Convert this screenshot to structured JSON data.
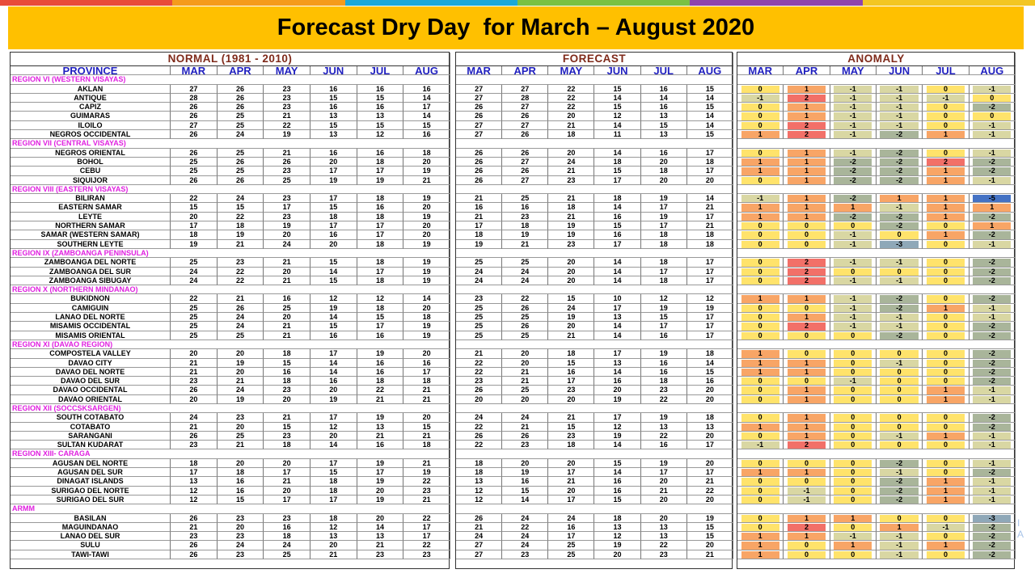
{
  "title": "Forecast Dry Day  for March – August 2020",
  "stripe_colors": [
    "#e84b3a",
    "#f59b1c",
    "#1ca8d6",
    "#7ac143",
    "#8e44ad",
    "#f3c623"
  ],
  "months": [
    "MAR",
    "APR",
    "MAY",
    "JUN",
    "JUL",
    "AUG"
  ],
  "normal_header": "NORMAL (1981 - 2010)",
  "forecast_header": "FORECAST",
  "anomaly_header": "ANOMALY",
  "province_header": "PROVINCE",
  "anomaly_colors": {
    "-5": "#4472c4",
    "-3": "#8fa8b8",
    "-2": "#a9b59a",
    "-1": "#d9d7a3",
    "0": "#ffe36b",
    "1": "#f8a566",
    "2": "#f27068"
  },
  "edge_text": [
    "I",
    "A"
  ],
  "rows": [
    {
      "region": "REGION VI (WESTERN VISAYAS)"
    },
    {
      "province": "AKLAN",
      "normal": [
        27,
        26,
        23,
        16,
        16,
        16
      ],
      "forecast": [
        27,
        27,
        22,
        15,
        16,
        15
      ],
      "anomaly": [
        0,
        1,
        -1,
        -1,
        0,
        -1
      ]
    },
    {
      "province": "ANTIQUE",
      "normal": [
        28,
        26,
        23,
        15,
        15,
        14
      ],
      "forecast": [
        27,
        28,
        22,
        14,
        14,
        14
      ],
      "anomaly": [
        -1,
        2,
        -1,
        -1,
        -1,
        0
      ]
    },
    {
      "province": "CAPIZ",
      "normal": [
        26,
        26,
        23,
        16,
        16,
        17
      ],
      "forecast": [
        26,
        27,
        22,
        15,
        16,
        15
      ],
      "anomaly": [
        0,
        1,
        -1,
        -1,
        0,
        -2
      ]
    },
    {
      "province": "GUIMARAS",
      "normal": [
        26,
        25,
        21,
        13,
        13,
        14
      ],
      "forecast": [
        26,
        26,
        20,
        12,
        13,
        14
      ],
      "anomaly": [
        0,
        1,
        -1,
        -1,
        0,
        0
      ]
    },
    {
      "province": "ILOILO",
      "normal": [
        27,
        25,
        22,
        15,
        15,
        15
      ],
      "forecast": [
        27,
        27,
        21,
        14,
        15,
        14
      ],
      "anomaly": [
        0,
        2,
        -1,
        -1,
        0,
        -1
      ]
    },
    {
      "province": "NEGROS OCCIDENTAL",
      "normal": [
        26,
        24,
        19,
        13,
        12,
        16
      ],
      "forecast": [
        27,
        26,
        18,
        11,
        13,
        15
      ],
      "anomaly": [
        1,
        2,
        -1,
        -2,
        1,
        -1
      ]
    },
    {
      "region": "REGION VII (CENTRAL VISAYAS)"
    },
    {
      "province": "NEGROS ORIENTAL",
      "normal": [
        26,
        25,
        21,
        16,
        16,
        18
      ],
      "forecast": [
        26,
        26,
        20,
        14,
        16,
        17
      ],
      "anomaly": [
        0,
        1,
        -1,
        -2,
        0,
        -1
      ]
    },
    {
      "province": "BOHOL",
      "normal": [
        25,
        26,
        26,
        20,
        18,
        20
      ],
      "forecast": [
        26,
        27,
        24,
        18,
        20,
        18
      ],
      "anomaly": [
        1,
        1,
        -2,
        -2,
        2,
        -2
      ]
    },
    {
      "province": "CEBU",
      "normal": [
        25,
        25,
        23,
        17,
        17,
        19
      ],
      "forecast": [
        26,
        26,
        21,
        15,
        18,
        17
      ],
      "anomaly": [
        1,
        1,
        -2,
        -2,
        1,
        -2
      ]
    },
    {
      "province": "SIQUIJOR",
      "normal": [
        26,
        26,
        25,
        19,
        19,
        21
      ],
      "forecast": [
        26,
        27,
        23,
        17,
        20,
        20
      ],
      "anomaly": [
        0,
        1,
        -2,
        -2,
        1,
        -1
      ]
    },
    {
      "region": "REGION VIII (EASTERN  VISAYAS)"
    },
    {
      "province": "BILIRAN",
      "normal": [
        22,
        24,
        23,
        17,
        18,
        19
      ],
      "forecast": [
        21,
        25,
        21,
        18,
        19,
        14
      ],
      "anomaly": [
        -1,
        1,
        -2,
        1,
        1,
        -5
      ]
    },
    {
      "province": "EASTERN SAMAR",
      "normal": [
        15,
        15,
        17,
        15,
        16,
        20
      ],
      "forecast": [
        16,
        16,
        18,
        14,
        17,
        21
      ],
      "anomaly": [
        1,
        1,
        1,
        -1,
        1,
        1
      ]
    },
    {
      "province": "LEYTE",
      "normal": [
        20,
        22,
        23,
        18,
        18,
        19
      ],
      "forecast": [
        21,
        23,
        21,
        16,
        19,
        17
      ],
      "anomaly": [
        1,
        1,
        -2,
        -2,
        1,
        -2
      ]
    },
    {
      "province": "NORTHERN SAMAR",
      "normal": [
        17,
        18,
        19,
        17,
        17,
        20
      ],
      "forecast": [
        17,
        18,
        19,
        15,
        17,
        21
      ],
      "anomaly": [
        0,
        0,
        0,
        -2,
        0,
        1
      ]
    },
    {
      "province": "SAMAR (WESTERN SAMAR)",
      "normal": [
        18,
        19,
        20,
        16,
        17,
        20
      ],
      "forecast": [
        18,
        19,
        19,
        16,
        18,
        18
      ],
      "anomaly": [
        0,
        0,
        -1,
        0,
        1,
        -2
      ]
    },
    {
      "province": "SOUTHERN LEYTE",
      "normal": [
        19,
        21,
        24,
        20,
        18,
        19
      ],
      "forecast": [
        19,
        21,
        23,
        17,
        18,
        18
      ],
      "anomaly": [
        0,
        0,
        -1,
        -3,
        0,
        -1
      ]
    },
    {
      "region": "REGION IX (ZAMBOANGA PENINSULA)"
    },
    {
      "province": "ZAMBOANGA DEL NORTE",
      "normal": [
        25,
        23,
        21,
        15,
        18,
        19
      ],
      "forecast": [
        25,
        25,
        20,
        14,
        18,
        17
      ],
      "anomaly": [
        0,
        2,
        -1,
        -1,
        0,
        -2
      ]
    },
    {
      "province": "ZAMBOANGA DEL SUR",
      "normal": [
        24,
        22,
        20,
        14,
        17,
        19
      ],
      "forecast": [
        24,
        24,
        20,
        14,
        17,
        17
      ],
      "anomaly": [
        0,
        2,
        0,
        0,
        0,
        -2
      ]
    },
    {
      "province": "ZAMBOANGA SIBUGAY",
      "normal": [
        24,
        22,
        21,
        15,
        18,
        19
      ],
      "forecast": [
        24,
        24,
        20,
        14,
        18,
        17
      ],
      "anomaly": [
        0,
        2,
        -1,
        -1,
        0,
        -2
      ]
    },
    {
      "region": "REGION X (NORTHERN MINDANAO)"
    },
    {
      "province": "BUKIDNON",
      "normal": [
        22,
        21,
        16,
        12,
        12,
        14
      ],
      "forecast": [
        23,
        22,
        15,
        10,
        12,
        12
      ],
      "anomaly": [
        1,
        1,
        -1,
        -2,
        0,
        -2
      ]
    },
    {
      "province": "CAMIGUIN",
      "normal": [
        25,
        26,
        25,
        19,
        18,
        20
      ],
      "forecast": [
        25,
        26,
        24,
        17,
        19,
        19
      ],
      "anomaly": [
        0,
        0,
        -1,
        -2,
        1,
        -1
      ]
    },
    {
      "province": "LANAO DEL NORTE",
      "normal": [
        25,
        24,
        20,
        14,
        15,
        18
      ],
      "forecast": [
        25,
        25,
        19,
        13,
        15,
        17
      ],
      "anomaly": [
        0,
        1,
        -1,
        -1,
        0,
        -1
      ]
    },
    {
      "province": "MISAMIS OCCIDENTAL",
      "normal": [
        25,
        24,
        21,
        15,
        17,
        19
      ],
      "forecast": [
        25,
        26,
        20,
        14,
        17,
        17
      ],
      "anomaly": [
        0,
        2,
        -1,
        -1,
        0,
        -2
      ]
    },
    {
      "province": "MISAMIS ORIENTAL",
      "normal": [
        25,
        25,
        21,
        16,
        16,
        19
      ],
      "forecast": [
        25,
        25,
        21,
        14,
        16,
        17
      ],
      "anomaly": [
        0,
        0,
        0,
        -2,
        0,
        -2
      ]
    },
    {
      "region": "REGION XI (DAVAO REGION)"
    },
    {
      "province": "COMPOSTELA VALLEY",
      "normal": [
        20,
        20,
        18,
        17,
        19,
        20
      ],
      "forecast": [
        21,
        20,
        18,
        17,
        19,
        18
      ],
      "anomaly": [
        1,
        0,
        0,
        0,
        0,
        -2
      ]
    },
    {
      "province": "DAVAO CITY",
      "normal": [
        21,
        19,
        15,
        14,
        16,
        16
      ],
      "forecast": [
        22,
        20,
        15,
        13,
        16,
        14
      ],
      "anomaly": [
        1,
        1,
        0,
        -1,
        0,
        -2
      ]
    },
    {
      "province": "DAVAO DEL NORTE",
      "normal": [
        21,
        20,
        16,
        14,
        16,
        17
      ],
      "forecast": [
        22,
        21,
        16,
        14,
        16,
        15
      ],
      "anomaly": [
        1,
        1,
        0,
        0,
        0,
        -2
      ]
    },
    {
      "province": "DAVAO DEL SUR",
      "normal": [
        23,
        21,
        18,
        16,
        18,
        18
      ],
      "forecast": [
        23,
        21,
        17,
        16,
        18,
        16
      ],
      "anomaly": [
        0,
        0,
        -1,
        0,
        0,
        -2
      ]
    },
    {
      "province": "DAVAO OCCIDENTAL",
      "normal": [
        26,
        24,
        23,
        20,
        22,
        21
      ],
      "forecast": [
        26,
        25,
        23,
        20,
        23,
        20
      ],
      "anomaly": [
        0,
        1,
        0,
        0,
        1,
        -1
      ]
    },
    {
      "province": "DAVAO ORIENTAL",
      "normal": [
        20,
        19,
        20,
        19,
        21,
        21
      ],
      "forecast": [
        20,
        20,
        20,
        19,
        22,
        20
      ],
      "anomaly": [
        0,
        1,
        0,
        0,
        1,
        -1
      ]
    },
    {
      "region": "REGION XII (SOCCSKSARGEN)"
    },
    {
      "province": "SOUTH COTABATO",
      "normal": [
        24,
        23,
        21,
        17,
        19,
        20
      ],
      "forecast": [
        24,
        24,
        21,
        17,
        19,
        18
      ],
      "anomaly": [
        0,
        1,
        0,
        0,
        0,
        -2
      ]
    },
    {
      "province": "COTABATO",
      "normal": [
        21,
        20,
        15,
        12,
        13,
        15
      ],
      "forecast": [
        22,
        21,
        15,
        12,
        13,
        13
      ],
      "anomaly": [
        1,
        1,
        0,
        0,
        0,
        -2
      ]
    },
    {
      "province": "SARANGANI",
      "normal": [
        26,
        25,
        23,
        20,
        21,
        21
      ],
      "forecast": [
        26,
        26,
        23,
        19,
        22,
        20
      ],
      "anomaly": [
        0,
        1,
        0,
        -1,
        1,
        -1
      ]
    },
    {
      "province": "SULTAN KUDARAT",
      "normal": [
        23,
        21,
        18,
        14,
        16,
        18
      ],
      "forecast": [
        22,
        23,
        18,
        14,
        16,
        17
      ],
      "anomaly": [
        -1,
        2,
        0,
        0,
        0,
        -1
      ]
    },
    {
      "region": "REGION XIII- CARAGA"
    },
    {
      "province": "AGUSAN DEL NORTE",
      "normal": [
        18,
        20,
        20,
        17,
        19,
        21
      ],
      "forecast": [
        18,
        20,
        20,
        15,
        19,
        20
      ],
      "anomaly": [
        0,
        0,
        0,
        -2,
        0,
        -1
      ]
    },
    {
      "province": "AGUSAN DEL SUR",
      "normal": [
        17,
        18,
        17,
        15,
        17,
        19
      ],
      "forecast": [
        18,
        19,
        17,
        14,
        17,
        17
      ],
      "anomaly": [
        1,
        1,
        0,
        -1,
        0,
        -2
      ]
    },
    {
      "province": "DINAGAT ISLANDS",
      "normal": [
        13,
        16,
        21,
        18,
        19,
        22
      ],
      "forecast": [
        13,
        16,
        21,
        16,
        20,
        21
      ],
      "anomaly": [
        0,
        0,
        0,
        -2,
        1,
        -1
      ]
    },
    {
      "province": "SURIGAO DEL NORTE",
      "normal": [
        12,
        16,
        20,
        18,
        20,
        23
      ],
      "forecast": [
        12,
        15,
        20,
        16,
        21,
        22
      ],
      "anomaly": [
        0,
        -1,
        0,
        -2,
        1,
        -1
      ]
    },
    {
      "province": "SURIGAO DEL SUR",
      "normal": [
        12,
        15,
        17,
        17,
        19,
        21
      ],
      "forecast": [
        12,
        14,
        17,
        15,
        20,
        20
      ],
      "anomaly": [
        0,
        -1,
        0,
        -2,
        1,
        -1
      ]
    },
    {
      "region": "ARMM"
    },
    {
      "province": "BASILAN",
      "normal": [
        26,
        23,
        23,
        18,
        20,
        22
      ],
      "forecast": [
        26,
        24,
        24,
        18,
        20,
        19
      ],
      "anomaly": [
        0,
        1,
        1,
        0,
        0,
        -3
      ]
    },
    {
      "province": "MAGUINDANAO",
      "normal": [
        21,
        20,
        16,
        12,
        14,
        17
      ],
      "forecast": [
        21,
        22,
        16,
        13,
        13,
        15
      ],
      "anomaly": [
        0,
        2,
        0,
        1,
        -1,
        -2
      ]
    },
    {
      "province": "LANAO DEL SUR",
      "normal": [
        23,
        23,
        18,
        13,
        13,
        17
      ],
      "forecast": [
        24,
        24,
        17,
        12,
        13,
        15
      ],
      "anomaly": [
        1,
        1,
        -1,
        -1,
        0,
        -2
      ]
    },
    {
      "province": "SULU",
      "normal": [
        26,
        24,
        24,
        20,
        21,
        22
      ],
      "forecast": [
        27,
        24,
        25,
        19,
        22,
        20
      ],
      "anomaly": [
        1,
        0,
        1,
        -1,
        1,
        -2
      ]
    },
    {
      "province": "TAWI-TAWI",
      "normal": [
        26,
        23,
        25,
        21,
        23,
        23
      ],
      "forecast": [
        27,
        23,
        25,
        20,
        23,
        21
      ],
      "anomaly": [
        1,
        0,
        0,
        -1,
        0,
        -2
      ]
    }
  ]
}
